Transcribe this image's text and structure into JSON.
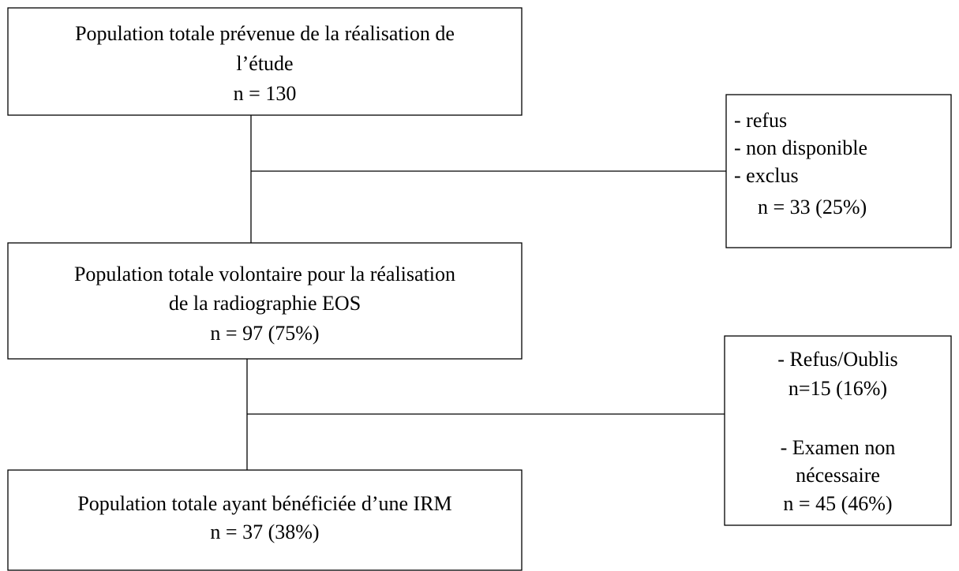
{
  "boxes": [
    {
      "lines": [
        "Population totale prévenue de la réalisation de",
        "l’étude",
        "n = 130"
      ]
    },
    {
      "lines": [
        "- refus",
        "- non disponible",
        "- exclus",
        "n = 33 (25%)"
      ]
    },
    {
      "lines": [
        "Population totale volontaire pour la réalisation",
        "de la radiographie EOS",
        "n = 97 (75%)"
      ]
    },
    {
      "lines": [
        "- Refus/Oublis",
        "n=15 (16%)",
        "- Examen non",
        "nécessaire",
        "n = 45 (46%)"
      ]
    },
    {
      "lines": [
        "Population totale ayant bénéficiée d’une IRM",
        "n = 37 (38%)"
      ]
    }
  ]
}
